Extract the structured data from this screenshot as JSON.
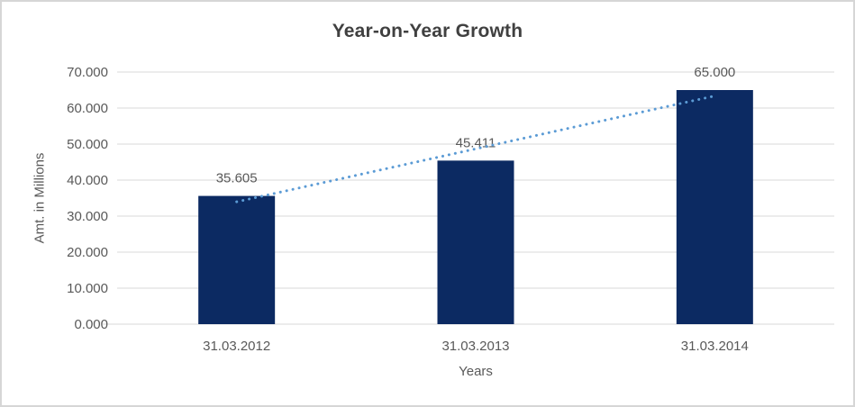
{
  "chart_data": {
    "type": "bar",
    "title": "Year-on-Year Growth",
    "xlabel": "Years",
    "ylabel": "Amt. in Millions",
    "categories": [
      "31.03.2012",
      "31.03.2013",
      "31.03.2014"
    ],
    "values": [
      35.605,
      45.411,
      65.0
    ],
    "data_labels": [
      "35.605",
      "45.411",
      "65.000"
    ],
    "ylim": [
      0,
      70
    ],
    "ytick_step": 10,
    "ytick_labels": [
      "0.000",
      "10.000",
      "20.000",
      "30.000",
      "40.000",
      "50.000",
      "60.000",
      "70.000"
    ],
    "grid": "horizontal",
    "legend": "none",
    "trendline": {
      "type": "linear",
      "style": "dotted",
      "color": "#5B9BD5"
    },
    "colors": {
      "bar": "#0C2A62",
      "trendline": "#5B9BD5",
      "gridline": "#D9D9D9",
      "axis_text": "#595959",
      "label_text": "#595959",
      "title_text": "#404040",
      "frame_border": "#D6D6D6",
      "background": "#FFFFFF"
    }
  }
}
